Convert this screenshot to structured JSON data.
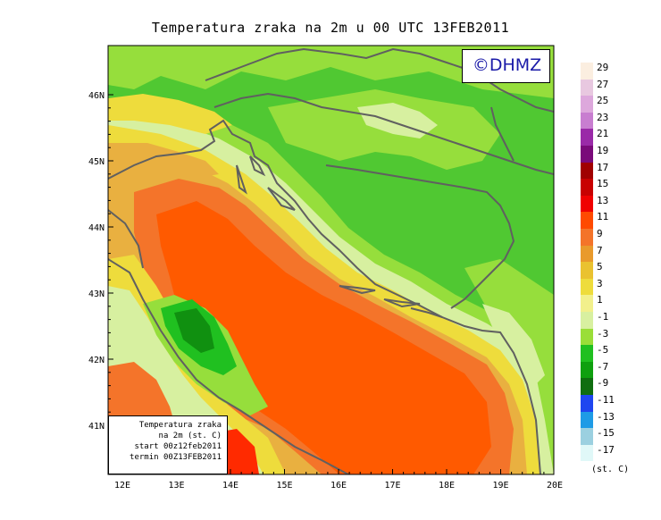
{
  "title": "Temperatura zraka na 2m u 00 UTC 13FEB2011",
  "logo": "©DHMZ",
  "info_box": {
    "line1": "Temperatura zraka",
    "line2": "na 2m (st. C)",
    "line3": "start 00z12feb2011",
    "line4": "termin 00Z13FEB2011"
  },
  "axes": {
    "x_ticks": [
      "12E",
      "13E",
      "14E",
      "15E",
      "16E",
      "17E",
      "18E",
      "19E",
      "20E"
    ],
    "y_ticks": [
      "46N",
      "45N",
      "44N",
      "43N",
      "42N",
      "41N"
    ]
  },
  "legend": {
    "unit": "(st. C)",
    "labels": [
      "29",
      "27",
      "25",
      "23",
      "21",
      "19",
      "17",
      "15",
      "13",
      "11",
      "9",
      "7",
      "5",
      "3",
      "1",
      "-1",
      "-3",
      "-5",
      "-7",
      "-9",
      "-11",
      "-13",
      "-15",
      "-17"
    ],
    "colors": [
      "#fbeee0",
      "#e8c8e0",
      "#dda8dc",
      "#c87ed0",
      "#9a2aa8",
      "#7a0a7a",
      "#a00000",
      "#c80000",
      "#f00000",
      "#ff4a00",
      "#f4742a",
      "#e99a2c",
      "#eac230",
      "#eedc3c",
      "#f2f08c",
      "#d8f0a0",
      "#9ade38",
      "#20c020",
      "#0fa00f",
      "#106e10",
      "#1f46f0",
      "#1e9be6",
      "#9bd0e0",
      "#e0f8f8"
    ]
  },
  "map_colors": {
    "background_green": "#50c832",
    "light_green": "#96de3c",
    "pale_green": "#d7f0a0",
    "yellow": "#eedc3c",
    "orange_yellow": "#e9b040",
    "orange": "#f4742a",
    "red_orange": "#ff5a00",
    "dark_green": "#109010",
    "coast": "#606060"
  }
}
